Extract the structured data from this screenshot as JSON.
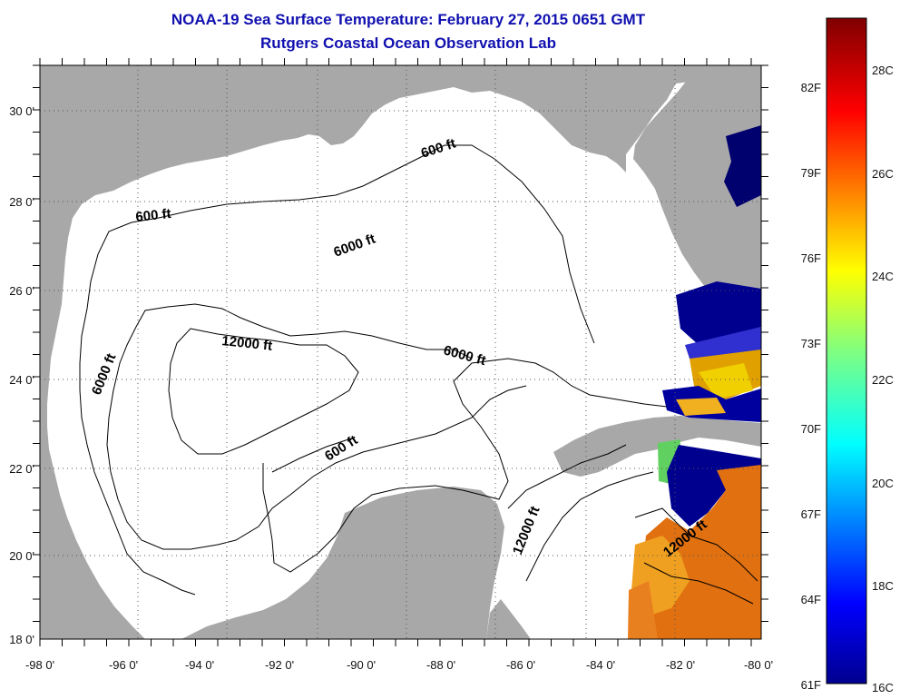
{
  "header": {
    "title": "NOAA-19 Sea Surface Temperature:  February 27, 2015 0651 GMT",
    "subtitle": "Rutgers Coastal Ocean Observation Lab"
  },
  "map": {
    "lon_ticks": [
      "-98 0'",
      "-96 0'",
      "-94 0'",
      "-92 0'",
      "-90 0'",
      "-88 0'",
      "-86 0'",
      "-84 0'",
      "-82 0'",
      "-80 0'"
    ],
    "lat_ticks": [
      "30 0'",
      "28 0'",
      "26 0'",
      "24 0'",
      "22 0'",
      "20 0'",
      "18 0'"
    ],
    "contour_labels": [
      "600 ft",
      "600 ft",
      "6000 ft",
      "12000 ft",
      "6000 ft",
      "6000 ft",
      "600 ft",
      "12000 ft",
      "12000 ft"
    ],
    "colors": {
      "land": "#a8a8a8",
      "sea": "#ffffff",
      "contour": "#000000"
    }
  },
  "colorbar": {
    "fahrenheit_labels": [
      "82F",
      "79F",
      "76F",
      "73F",
      "70F",
      "67F",
      "64F",
      "61F"
    ],
    "celsius_labels": [
      "28C",
      "26C",
      "24C",
      "22C",
      "20C",
      "18C",
      "16C"
    ]
  }
}
